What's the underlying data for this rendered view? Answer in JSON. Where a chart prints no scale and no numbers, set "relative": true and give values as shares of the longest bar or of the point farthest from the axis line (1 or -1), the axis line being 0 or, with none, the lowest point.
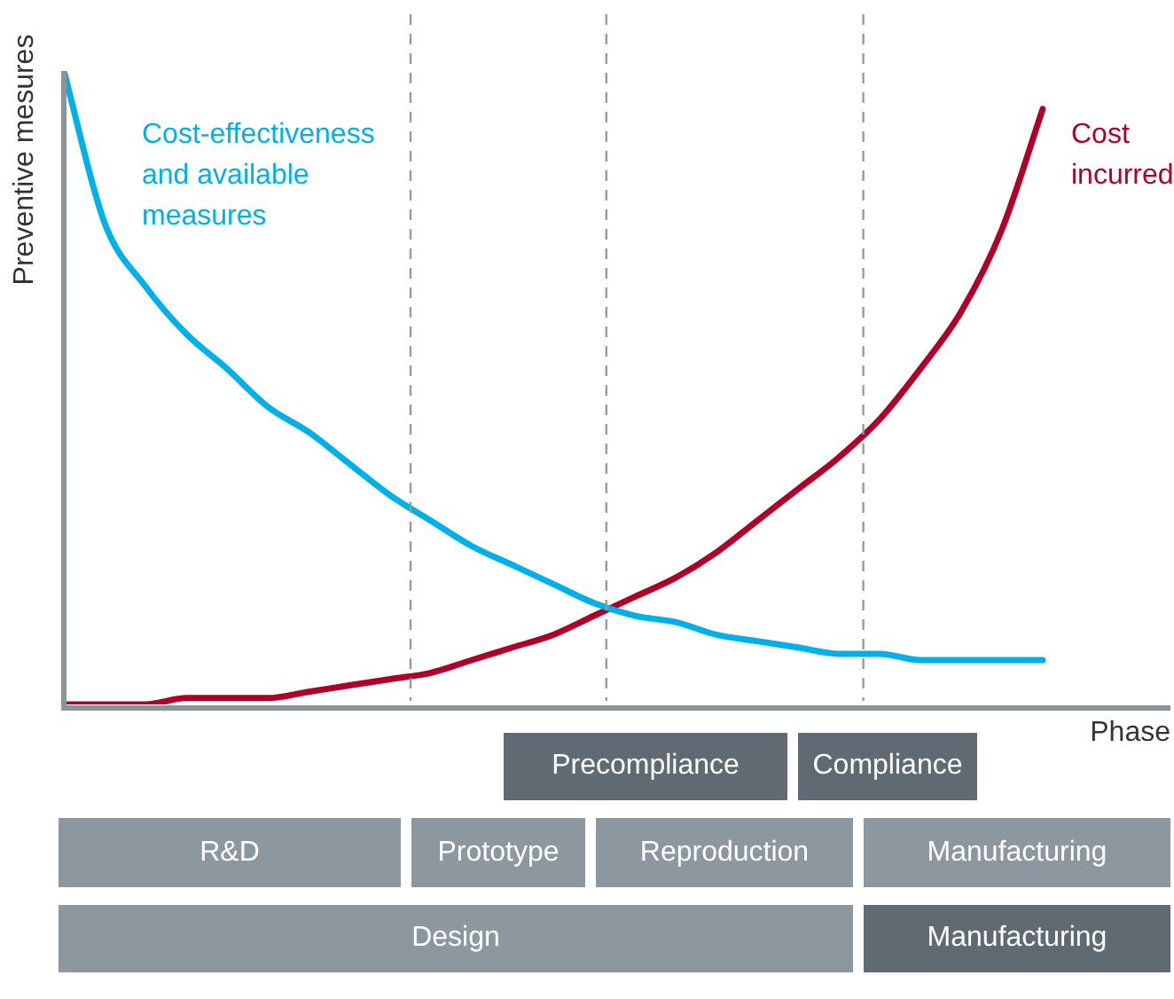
{
  "chart_data": {
    "type": "line",
    "relative": true,
    "ylabel": "Preventive mesures",
    "xlabel": "Phase",
    "legend": false,
    "grid": false,
    "marker": "none",
    "line_style": "solid",
    "categories": [
      null,
      null,
      null,
      null,
      null,
      null,
      null,
      null,
      null,
      null,
      null,
      null,
      null,
      null,
      null,
      null,
      null,
      null,
      null,
      null,
      null,
      null,
      null,
      null,
      null
    ],
    "series": [
      {
        "name": "Cost-effectiveness and available measures",
        "color": "#00b0e8",
        "values": [
          1.0,
          0.76,
          0.66,
          0.585,
          0.53,
          0.47,
          0.43,
          0.38,
          0.33,
          0.29,
          0.25,
          0.22,
          0.19,
          0.16,
          0.14,
          0.13,
          0.11,
          0.1,
          0.09,
          0.08,
          0.08,
          0.07,
          0.07,
          0.07,
          0.07
        ]
      },
      {
        "name": "Cost incurred",
        "color": "#b0002a",
        "values": [
          0,
          0,
          0,
          0.01,
          0.01,
          0.01,
          0.02,
          0.03,
          0.04,
          0.05,
          0.07,
          0.09,
          0.11,
          0.14,
          0.17,
          0.2,
          0.24,
          0.29,
          0.34,
          0.39,
          0.45,
          0.53,
          0.62,
          0.75,
          0.94
        ]
      }
    ],
    "annotations": [
      "Precompliance",
      "Compliance",
      "R&D",
      "Prototype",
      "Reproduction",
      "Manufacturing",
      "Design",
      "Manufacturing"
    ]
  }
}
